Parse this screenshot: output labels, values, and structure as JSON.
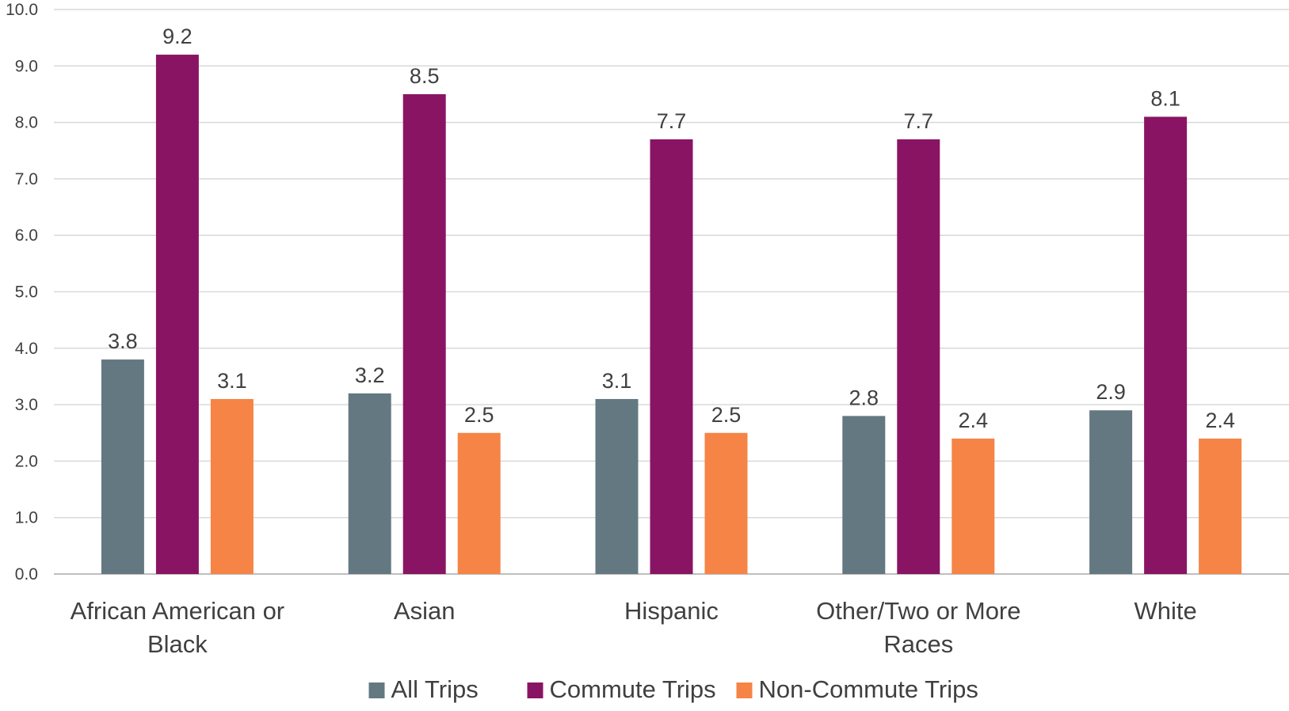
{
  "chart_data": {
    "type": "bar",
    "title": "",
    "xlabel": "",
    "ylabel": "",
    "ylim": [
      0,
      10
    ],
    "yticks": [
      "0.0",
      "1.0",
      "2.0",
      "3.0",
      "4.0",
      "5.0",
      "6.0",
      "7.0",
      "8.0",
      "9.0",
      "10.0"
    ],
    "grid": true,
    "legend_position": "bottom",
    "categories": [
      [
        "African American or",
        "Black"
      ],
      [
        "Asian"
      ],
      [
        "Hispanic"
      ],
      [
        "Other/Two or More",
        "Races"
      ],
      [
        "White"
      ]
    ],
    "series": [
      {
        "name": "All Trips",
        "color": "#647882",
        "values": [
          3.8,
          3.2,
          3.1,
          2.8,
          2.9
        ],
        "labels": [
          "3.8",
          "3.2",
          "3.1",
          "2.8",
          "2.9"
        ]
      },
      {
        "name": "Commute Trips",
        "color": "#8a1464",
        "values": [
          9.2,
          8.5,
          7.7,
          7.7,
          8.1
        ],
        "labels": [
          "9.2",
          "8.5",
          "7.7",
          "7.7",
          "8.1"
        ]
      },
      {
        "name": "Non-Commute Trips",
        "color": "#f58446",
        "values": [
          3.1,
          2.5,
          2.5,
          2.4,
          2.4
        ],
        "labels": [
          "3.1",
          "2.5",
          "2.5",
          "2.4",
          "2.4"
        ]
      }
    ]
  }
}
